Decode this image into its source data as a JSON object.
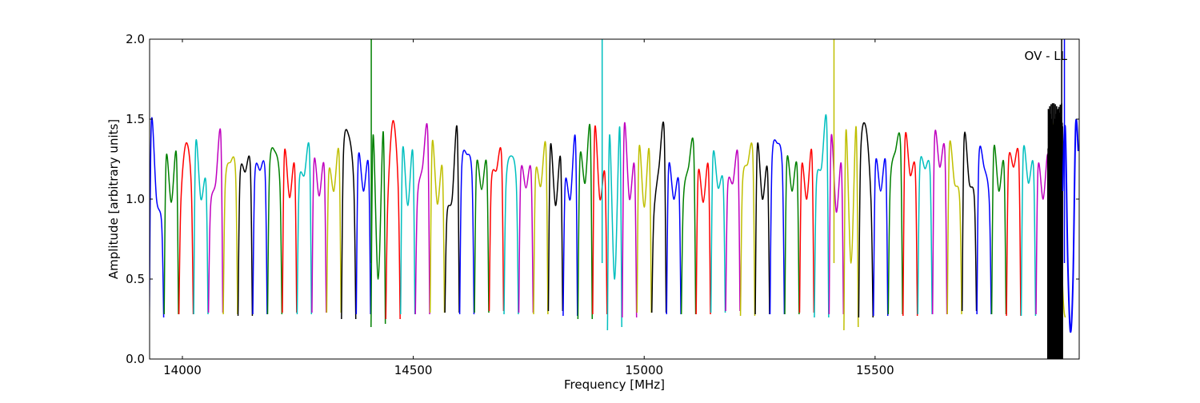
{
  "chart_data": {
    "type": "line",
    "title": "",
    "annotation": "OV - LL",
    "xlabel": "Frequency [MHz]",
    "ylabel": "Amplitude [arbitrary units]",
    "xlim": [
      13929,
      15942
    ],
    "ylim": [
      0.0,
      2.0
    ],
    "xticks": [
      14000,
      14500,
      15000,
      15500
    ],
    "xtick_labels": [
      "14000",
      "14500",
      "15000",
      "15500"
    ],
    "yticks": [
      0.0,
      0.5,
      1.0,
      1.5,
      2.0
    ],
    "ytick_labels": [
      "0.0",
      "0.5",
      "1.0",
      "1.5",
      "2.0"
    ],
    "grid": false,
    "color_cycle": [
      "#0000ff",
      "#008000",
      "#ff0000",
      "#00bfbf",
      "#bf00bf",
      "#bfbf00",
      "#000000"
    ],
    "segment_width_mhz": 32,
    "first_segment_start": 13928,
    "sample_offsets_mhz": [
      0.5,
      5,
      16,
      27,
      31.5
    ],
    "segments": [
      [
        0.26,
        1.49,
        1.0,
        0.85,
        0.26
      ],
      [
        0.28,
        1.26,
        0.98,
        1.28,
        0.28
      ],
      [
        0.28,
        1.0,
        1.35,
        1.1,
        0.28
      ],
      [
        0.28,
        1.35,
        1.0,
        1.1,
        0.28
      ],
      [
        0.29,
        0.95,
        1.1,
        1.41,
        0.29
      ],
      [
        0.28,
        1.1,
        1.23,
        1.17,
        0.28
      ],
      [
        0.27,
        1.15,
        1.17,
        1.21,
        0.27
      ],
      [
        0.28,
        1.15,
        1.18,
        1.17,
        0.28
      ],
      [
        0.28,
        1.2,
        1.3,
        1.1,
        0.28
      ],
      [
        0.29,
        1.29,
        1.01,
        1.2,
        0.29
      ],
      [
        0.28,
        1.1,
        1.15,
        1.31,
        0.28
      ],
      [
        0.29,
        1.23,
        1.02,
        1.2,
        0.29
      ],
      [
        0.29,
        1.16,
        1.05,
        1.29,
        0.29
      ],
      [
        0.25,
        1.3,
        1.4,
        1.1,
        0.25
      ],
      [
        0.28,
        1.26,
        1.05,
        1.21,
        0.28
      ],
      [
        0.2,
        1.4,
        0.5,
        1.42,
        0.22
      ],
      [
        0.25,
        1.0,
        1.49,
        1.1,
        0.25
      ],
      [
        0.28,
        1.31,
        0.96,
        1.29,
        0.28
      ],
      [
        0.28,
        1.0,
        1.2,
        1.43,
        0.28
      ],
      [
        0.29,
        1.35,
        0.97,
        1.19,
        0.29
      ],
      [
        0.29,
        0.9,
        1.0,
        1.44,
        0.29
      ],
      [
        0.28,
        1.2,
        1.28,
        1.15,
        0.28
      ],
      [
        0.29,
        1.21,
        1.06,
        1.21,
        0.29
      ],
      [
        0.3,
        1.1,
        1.18,
        1.27,
        0.3
      ],
      [
        0.28,
        1.1,
        1.27,
        1.1,
        0.28
      ],
      [
        0.29,
        1.17,
        1.07,
        1.17,
        0.29
      ],
      [
        0.28,
        1.16,
        1.08,
        1.33,
        0.28
      ],
      [
        0.3,
        1.33,
        0.96,
        1.25,
        0.3
      ],
      [
        0.27,
        1.1,
        1.0,
        1.38,
        0.27
      ],
      [
        0.25,
        1.26,
        1.1,
        1.44,
        0.25
      ],
      [
        0.28,
        1.44,
        1.0,
        1.15,
        0.28
      ],
      [
        0.18,
        1.4,
        0.5,
        1.45,
        0.2
      ],
      [
        0.26,
        1.46,
        1.0,
        1.2,
        0.26
      ],
      [
        0.29,
        1.32,
        0.95,
        1.3,
        0.29
      ],
      [
        0.29,
        0.9,
        1.2,
        1.44,
        0.29
      ],
      [
        0.28,
        1.2,
        1.0,
        1.1,
        0.28
      ],
      [
        0.28,
        1.0,
        1.2,
        1.33,
        0.28
      ],
      [
        0.28,
        1.16,
        0.98,
        1.2,
        0.28
      ],
      [
        0.29,
        1.27,
        1.07,
        1.1,
        0.29
      ],
      [
        0.3,
        1.08,
        1.1,
        1.27,
        0.3
      ],
      [
        0.27,
        1.1,
        1.22,
        1.29,
        0.27
      ],
      [
        0.28,
        1.33,
        1.0,
        1.18,
        0.28
      ],
      [
        0.28,
        1.25,
        1.35,
        1.2,
        0.28
      ],
      [
        0.28,
        1.24,
        1.05,
        1.2,
        0.28
      ],
      [
        0.29,
        1.2,
        1.0,
        1.29,
        0.29
      ],
      [
        0.26,
        1.1,
        1.2,
        1.49,
        0.26
      ],
      [
        0.28,
        1.39,
        0.92,
        1.21,
        0.28
      ],
      [
        0.18,
        1.43,
        0.6,
        1.45,
        0.2
      ],
      [
        0.26,
        1.3,
        1.45,
        1.0,
        0.26
      ],
      [
        0.27,
        1.22,
        1.05,
        1.22,
        0.27
      ],
      [
        0.28,
        1.1,
        1.3,
        1.34,
        0.28
      ],
      [
        0.27,
        1.38,
        1.15,
        1.18,
        0.27
      ],
      [
        0.28,
        1.2,
        1.19,
        1.17,
        0.28
      ],
      [
        0.28,
        1.39,
        1.2,
        1.3,
        0.28
      ],
      [
        0.28,
        1.33,
        1.1,
        1.0,
        0.28
      ],
      [
        0.3,
        1.39,
        1.1,
        1.0,
        0.3
      ],
      [
        0.28,
        1.27,
        1.2,
        1.0,
        0.28
      ],
      [
        0.28,
        1.31,
        1.05,
        1.21,
        0.28
      ],
      [
        0.27,
        1.23,
        1.2,
        1.26,
        0.27
      ],
      [
        0.27,
        1.3,
        1.1,
        1.2,
        0.27
      ],
      [
        0.28,
        1.2,
        1.0,
        1.26,
        0.28
      ],
      [
        0.26,
        1.42,
        1.2,
        0.4,
        0.26
      ]
    ],
    "noise_segment": {
      "x_start": 15874,
      "x_end": 15906,
      "color": "#000000",
      "y_min": 0.0,
      "y_max": 1.6
    },
    "final_segment": {
      "x_start": 15906,
      "x_end": 15940,
      "color": "#0000ff",
      "values": [
        1.05,
        1.45,
        0.6,
        0.17,
        0.5,
        1.46,
        1.3
      ]
    },
    "spikes": [
      {
        "x": 14409,
        "color": "#008000",
        "y_top": 2.0
      },
      {
        "x": 14909,
        "color": "#00bfbf",
        "y_top": 2.0
      },
      {
        "x": 15411,
        "color": "#bfbf00",
        "y_top": 2.0
      },
      {
        "x": 15904,
        "color": "#000000",
        "y_top": 2.0
      },
      {
        "x": 15910,
        "color": "#0000ff",
        "y_top": 2.0
      }
    ]
  }
}
